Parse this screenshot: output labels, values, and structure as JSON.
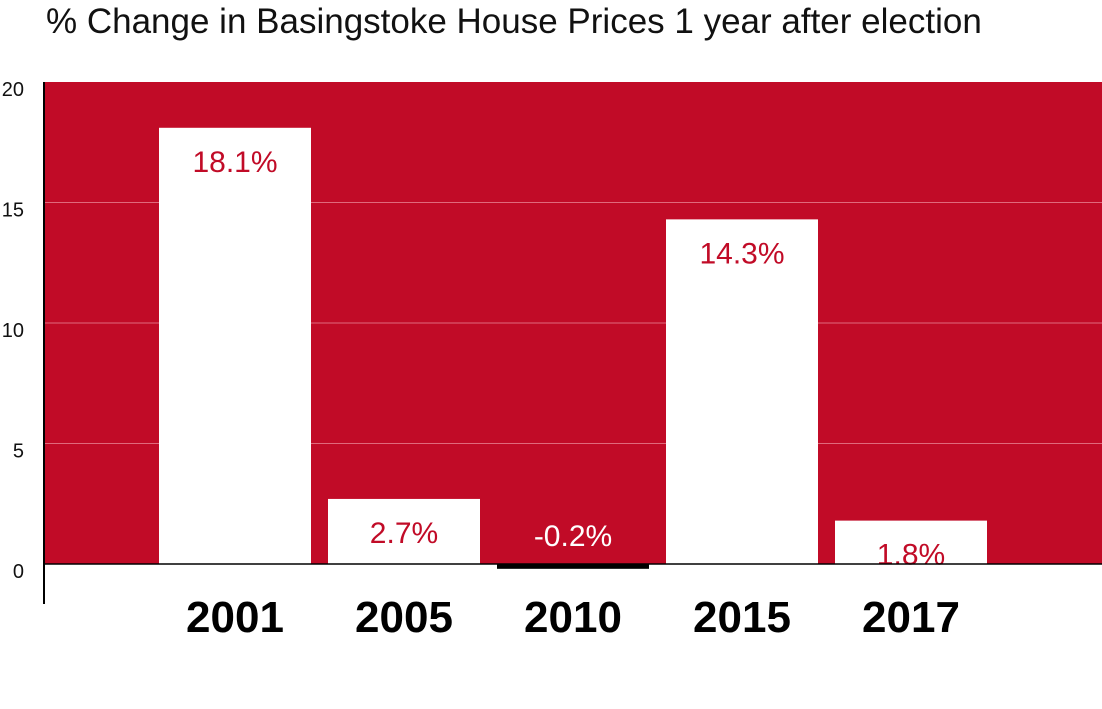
{
  "chart_data": {
    "type": "bar",
    "title": "% Change in Basingstoke House Prices 1 year after election",
    "categories": [
      "2001",
      "2005",
      "2010",
      "2015",
      "2017"
    ],
    "values": [
      18.1,
      2.7,
      -0.2,
      14.3,
      1.8
    ],
    "data_labels": [
      "18.1%",
      "2.7%",
      "-0.2%",
      "14.3%",
      "1.8%"
    ],
    "ylim": [
      0,
      20
    ],
    "yticks": [
      "0",
      "5",
      "10",
      "15",
      "20"
    ],
    "xlabel": "",
    "ylabel": "",
    "grid": true,
    "legend": "none",
    "colors": {
      "background": "#c10b27",
      "bar": "#ffffff",
      "negative_bar": "#000000",
      "gridline": "#e06a7c",
      "label_on_bar": "#c10b27",
      "label_on_background": "#ffffff"
    }
  }
}
